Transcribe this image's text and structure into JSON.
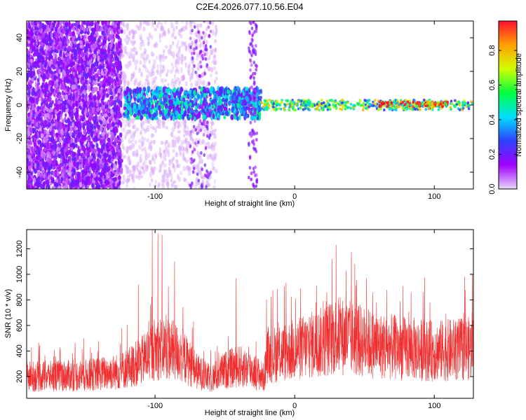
{
  "title": "C2E4.2026.077.10.56.E04",
  "chart_data": [
    {
      "type": "heatmap",
      "xlabel": "Height of straight line (km)",
      "ylabel": "Frequency (Hz)",
      "xlim": [
        -192,
        128
      ],
      "ylim": [
        -50,
        50
      ],
      "xticks": [
        -100,
        0,
        100
      ],
      "yticks": [
        -40,
        -20,
        0,
        20,
        40
      ],
      "colorbar": {
        "label": "Normalized spectral amplitude",
        "range": [
          0,
          0.97
        ],
        "ticks": [
          "0.0",
          "0.2",
          "0.4",
          "0.6",
          "0.8"
        ],
        "tick_values": [
          0.0,
          0.2,
          0.4,
          0.6,
          0.8
        ],
        "colors": [
          "#e8d8f8",
          "#a000ff",
          "#3040ff",
          "#00e0ff",
          "#00ff40",
          "#d0ff00",
          "#ffa000",
          "#ff1030"
        ]
      },
      "regions": [
        {
          "x_range": [
            -192,
            -124
          ],
          "f_range": [
            -50,
            50
          ],
          "amplitude": 0.12,
          "density": "high"
        },
        {
          "x_range": [
            -124,
            -56
          ],
          "f_range": [
            -50,
            50
          ],
          "amplitude": 0.03,
          "density": "low"
        },
        {
          "x_range": [
            -122,
            -24
          ],
          "f_range": [
            -8,
            10
          ],
          "amplitude": 0.35,
          "density": "high"
        },
        {
          "x_range": [
            -24,
            128
          ],
          "f_range": [
            -3,
            3
          ],
          "amplitude": 0.55,
          "density": "band"
        },
        {
          "x_range": [
            60,
            110
          ],
          "f_range": [
            -1,
            2
          ],
          "amplitude": 0.9,
          "density": "band"
        }
      ]
    },
    {
      "type": "line",
      "xlabel": "Height of straight line (km)",
      "ylabel": "SNR (10 * v/v)",
      "xlim": [
        -192,
        128
      ],
      "ylim": [
        30,
        1350
      ],
      "xticks": [
        -100,
        0,
        100
      ],
      "yticks": [
        200,
        400,
        600,
        800,
        1000,
        1200
      ],
      "color": "#f03030",
      "series_profile": [
        {
          "x": -192,
          "y": 200
        },
        {
          "x": -150,
          "y": 210
        },
        {
          "x": -125,
          "y": 240
        },
        {
          "x": -110,
          "y": 320
        },
        {
          "x": -100,
          "y": 420
        },
        {
          "x": -90,
          "y": 420
        },
        {
          "x": -80,
          "y": 360
        },
        {
          "x": -70,
          "y": 240
        },
        {
          "x": -60,
          "y": 180
        },
        {
          "x": -50,
          "y": 250
        },
        {
          "x": -40,
          "y": 280
        },
        {
          "x": -30,
          "y": 250
        },
        {
          "x": -22,
          "y": 190
        },
        {
          "x": -20,
          "y": 360
        },
        {
          "x": 0,
          "y": 410
        },
        {
          "x": 20,
          "y": 470
        },
        {
          "x": 30,
          "y": 520
        },
        {
          "x": 40,
          "y": 500
        },
        {
          "x": 60,
          "y": 440
        },
        {
          "x": 80,
          "y": 420
        },
        {
          "x": 100,
          "y": 400
        },
        {
          "x": 128,
          "y": 420
        }
      ],
      "peaks": [
        {
          "x": -102,
          "y": 1350
        },
        {
          "x": -98,
          "y": 1320
        },
        {
          "x": -95,
          "y": 1310
        },
        {
          "x": -86,
          "y": 1100
        },
        {
          "x": -112,
          "y": 920
        },
        {
          "x": -42,
          "y": 970
        },
        {
          "x": 23,
          "y": 860
        }
      ]
    }
  ]
}
